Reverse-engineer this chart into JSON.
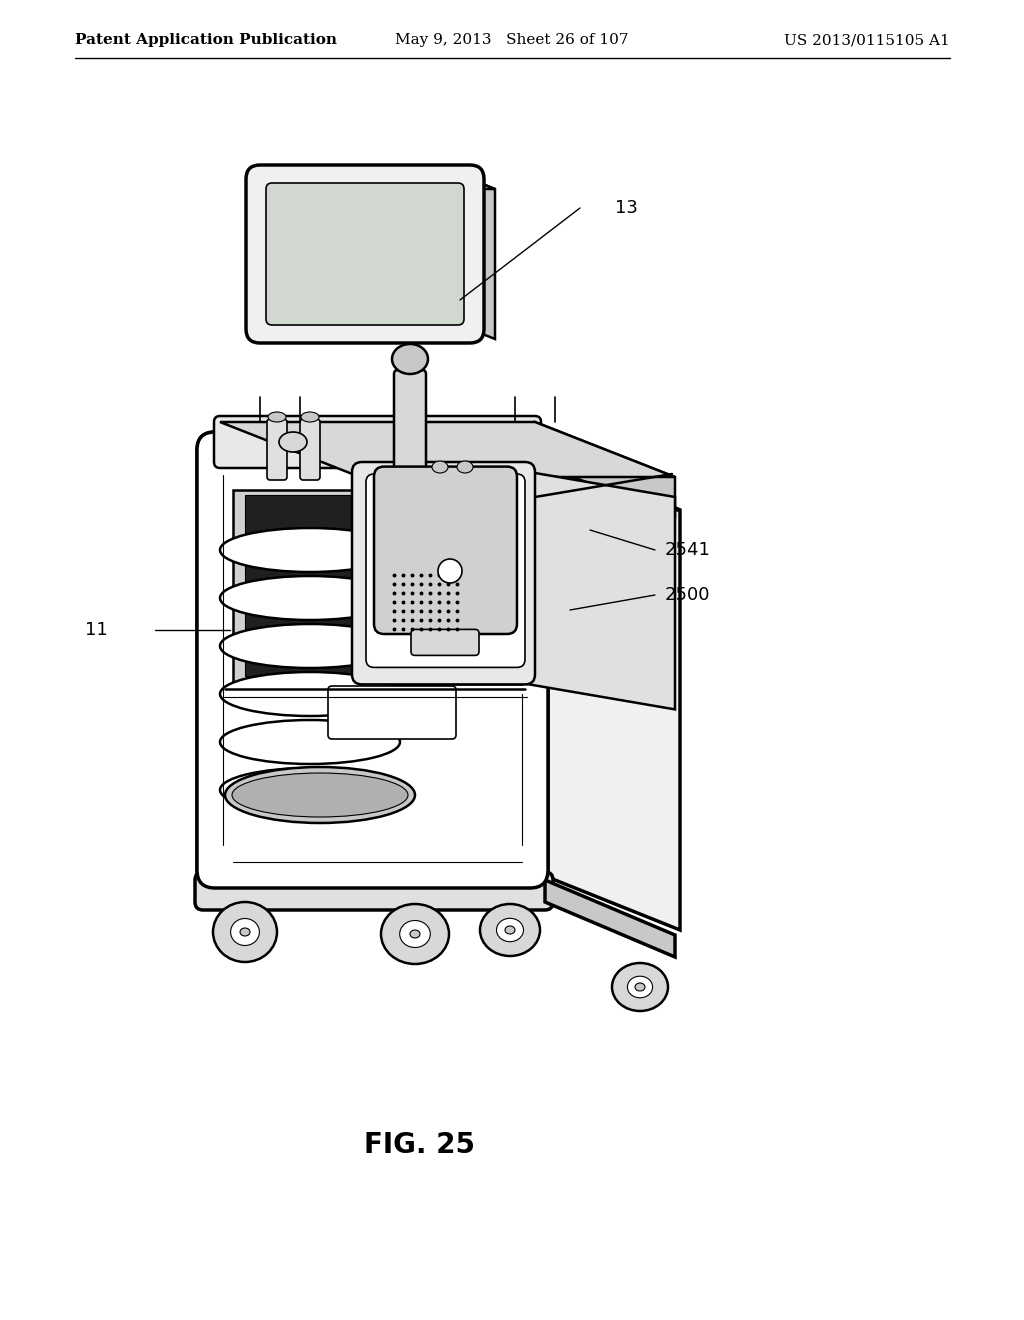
{
  "background_color": "#ffffff",
  "header_left": "Patent Application Publication",
  "header_mid": "May 9, 2013   Sheet 26 of 107",
  "header_right": "US 2013/0115105 A1",
  "figure_label": "FIG. 25",
  "text_color": "#000000",
  "header_fontsize": 11,
  "label_fontsize": 13,
  "fig_label_fontsize": 20,
  "line_color": "#000000",
  "body_fill": "#ffffff",
  "side_fill": "#f0f0f0",
  "top_fill": "#e8e8e8",
  "dark_fill": "#c8c8c8",
  "medium_fill": "#d8d8d8"
}
